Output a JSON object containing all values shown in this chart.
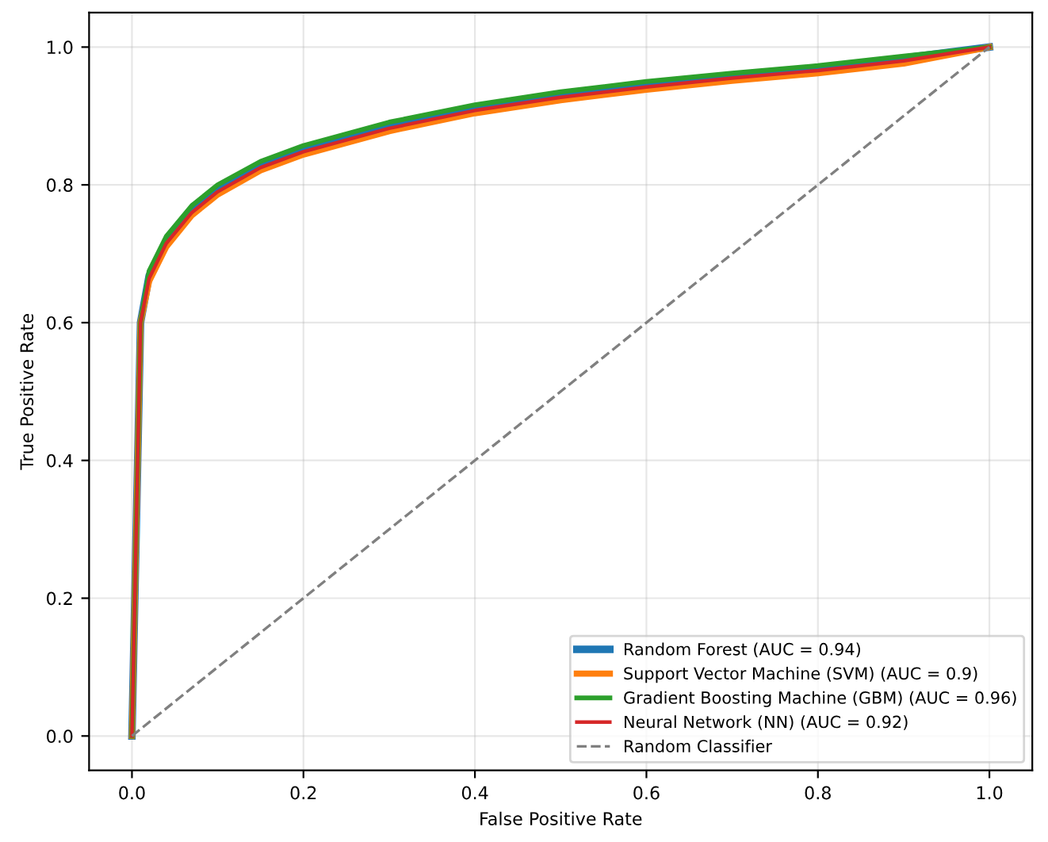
{
  "chart_data": {
    "type": "line",
    "xlabel": "False Positive Rate",
    "ylabel": "True Positive Rate",
    "x": [
      0,
      0.01,
      0.02,
      0.04,
      0.07,
      0.1,
      0.15,
      0.2,
      0.3,
      0.4,
      0.5,
      0.6,
      0.7,
      0.8,
      0.9,
      1
    ],
    "series": [
      {
        "name": "Random Forest (AUC = 0.94)",
        "color": "#1f77b4",
        "values": [
          0,
          0.6,
          0.668,
          0.719,
          0.764,
          0.794,
          0.829,
          0.852,
          0.886,
          0.912,
          0.931,
          0.946,
          0.959,
          0.97,
          0.984,
          1
        ]
      },
      {
        "name": "Support Vector Machine (SVM) (AUC = 0.9)",
        "color": "#ff7f0e",
        "values": [
          0,
          0.6,
          0.66,
          0.71,
          0.756,
          0.786,
          0.821,
          0.844,
          0.878,
          0.904,
          0.923,
          0.938,
          0.951,
          0.962,
          0.976,
          1
        ]
      },
      {
        "name": "Gradient Boosting Machine (GBM) (AUC = 0.96)",
        "color": "#2ca02c",
        "values": [
          0,
          0.6,
          0.675,
          0.725,
          0.77,
          0.8,
          0.834,
          0.857,
          0.891,
          0.916,
          0.935,
          0.95,
          0.962,
          0.973,
          0.987,
          1
        ]
      },
      {
        "name": "Neural Network (NN) (AUC = 0.92)",
        "color": "#d62728",
        "values": [
          0,
          0.6,
          0.664,
          0.715,
          0.76,
          0.79,
          0.825,
          0.848,
          0.882,
          0.908,
          0.927,
          0.942,
          0.955,
          0.966,
          0.98,
          1
        ]
      },
      {
        "name": "Random Classifier",
        "color": "#808080",
        "line_style": "dashed",
        "x": [
          0,
          1
        ],
        "values": [
          0,
          1
        ]
      }
    ],
    "xlim": [
      -0.05,
      1.05
    ],
    "ylim": [
      -0.05,
      1.05
    ],
    "xticks": [
      {
        "value": 0,
        "label": "0.0"
      },
      0.2,
      0.4,
      0.6,
      0.8,
      {
        "value": 1,
        "label": "1.0"
      }
    ],
    "yticks": [
      {
        "value": 0,
        "label": "0.0"
      },
      0.2,
      0.4,
      0.6,
      0.8,
      {
        "value": 1,
        "label": "1.0"
      }
    ],
    "grid": true,
    "legend": "bottom right"
  }
}
